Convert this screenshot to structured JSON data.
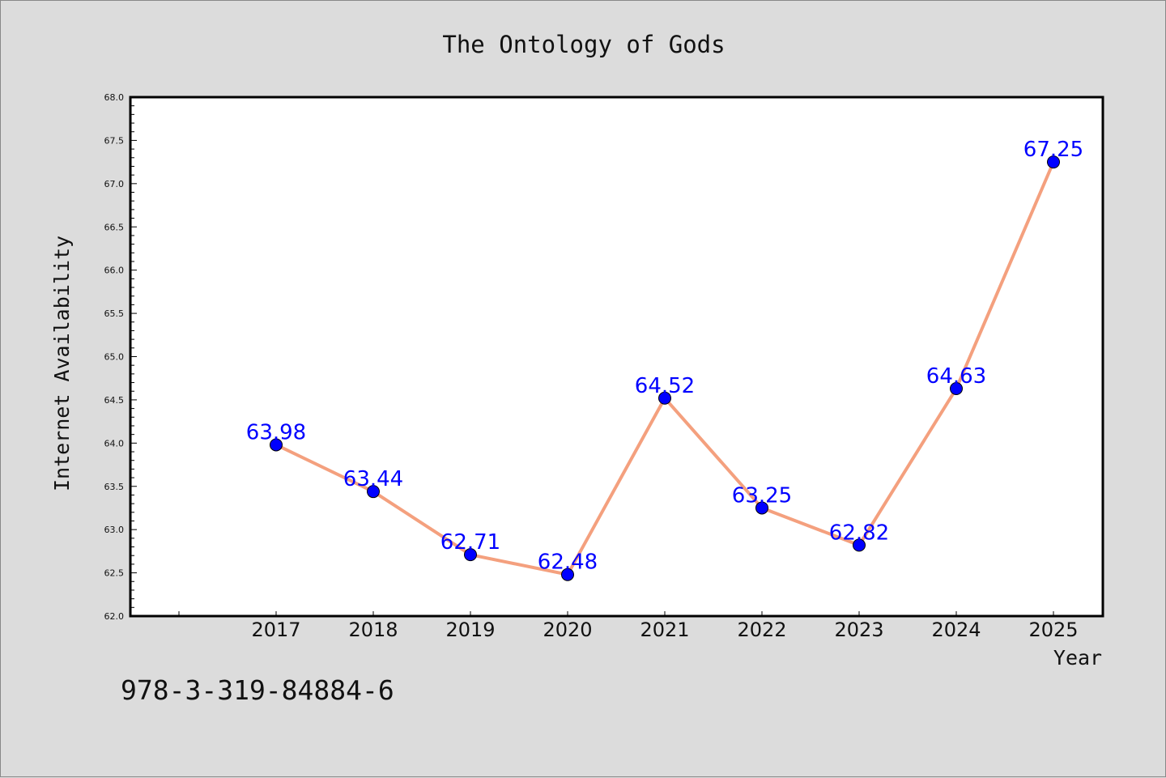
{
  "isbn": "978-3-319-84884-6",
  "chart_data": {
    "type": "line",
    "title": "The Ontology of Gods",
    "xlabel": "Year",
    "ylabel": "Internet Availability",
    "categories": [
      "2017",
      "2018",
      "2019",
      "2020",
      "2021",
      "2022",
      "2023",
      "2024",
      "2025"
    ],
    "series": [
      {
        "values": [
          63.98,
          63.44,
          62.71,
          62.48,
          64.52,
          63.25,
          62.82,
          64.63,
          67.25
        ]
      }
    ],
    "data_labels": [
      "63.98",
      "63.44",
      "62.71",
      "62.48",
      "64.52",
      "63.25",
      "62.82",
      "64.63",
      "67.25"
    ],
    "ylim": [
      62.0,
      68.0
    ],
    "yticks": [
      "62.0",
      "62.5",
      "63.0",
      "63.5",
      "64.0",
      "64.5",
      "65.0",
      "65.5",
      "66.0",
      "66.5",
      "67.0",
      "67.5",
      "68.0"
    ],
    "grid": false,
    "line_color": "#f4a07e",
    "marker_color": "#0000ff",
    "label_color": "#0000ff"
  }
}
